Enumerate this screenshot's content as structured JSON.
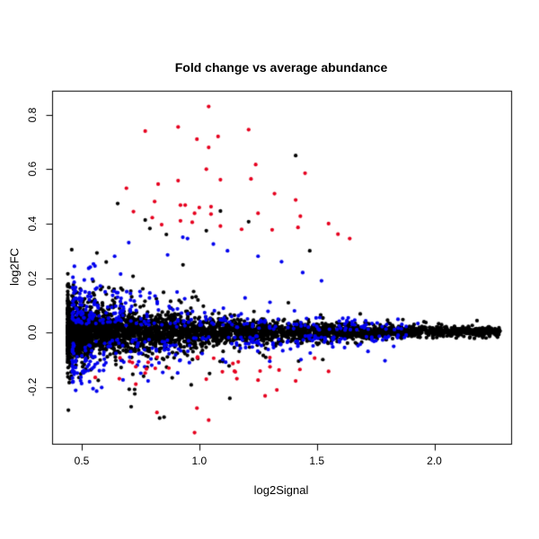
{
  "chart_data": {
    "type": "scatter",
    "title": "Fold change vs average abundance",
    "xlabel": "log2Signal",
    "ylabel": "log2FC",
    "xlim": [
      0.37,
      2.33
    ],
    "ylim": [
      -0.41,
      0.89
    ],
    "x_ticks": [
      0.5,
      1.0,
      1.5,
      2.0
    ],
    "x_tick_labels": [
      "0.5",
      "1.0",
      "1.5",
      "2.0"
    ],
    "y_ticks": [
      -0.2,
      0.0,
      0.2,
      0.4,
      0.6,
      0.8
    ],
    "y_tick_labels": [
      "-0.2",
      "0.0",
      "0.2",
      "0.4",
      "0.6",
      "0.8"
    ],
    "grid": false,
    "legend": null,
    "background": "#ffffff",
    "axis_color": "#000000",
    "point_radius_px": 2.1,
    "series_colors": {
      "black": "#000000",
      "blue": "#0000ee",
      "red": "#e6001e"
    },
    "description": "MA-plot style scatter: dense funnel-shaped black cloud centered on log2FC=0, widest near log2Signal 0.5-1.1, narrowing to a thin line at log2Signal 2.28. Blue points fringe the dense core (|log2FC| ~0.03-0.37). Red points are high-fold-change outliers (log2FC > 0.35 or < -0.08).",
    "generated_cloud": {
      "seed": 7,
      "black": {
        "count": 3800,
        "x_min": 0.44,
        "x_span": 1.84,
        "x_power": 2.0,
        "sd_base": 0.0045,
        "sd_amp": 0.046,
        "sd_decay": 1.5,
        "y_center": 0.004
      },
      "blue": {
        "count": 480,
        "x_min": 0.46,
        "x_span": 1.42,
        "x_power": 1.7,
        "ring_offset": 0.35,
        "ring_scale": 2.0,
        "y_clamp": 0.36
      },
      "red_fringe": {
        "count": 26,
        "x_min": 0.55,
        "x_span": 0.95,
        "x_power": 1.3,
        "y_base": -0.085,
        "y_extra": 0.095
      }
    },
    "explicit_points": {
      "red": [
        [
          1.04,
          0.83
        ],
        [
          0.77,
          0.74
        ],
        [
          0.91,
          0.755
        ],
        [
          1.21,
          0.745
        ],
        [
          0.99,
          0.71
        ],
        [
          1.08,
          0.72
        ],
        [
          1.04,
          0.68
        ],
        [
          1.24,
          0.617
        ],
        [
          1.03,
          0.6
        ],
        [
          1.45,
          0.585
        ],
        [
          0.69,
          0.53
        ],
        [
          0.825,
          0.545
        ],
        [
          0.91,
          0.558
        ],
        [
          1.09,
          0.561
        ],
        [
          1.22,
          0.564
        ],
        [
          1.32,
          0.51
        ],
        [
          1.41,
          0.487
        ],
        [
          0.81,
          0.481
        ],
        [
          0.72,
          0.444
        ],
        [
          0.92,
          0.468
        ],
        [
          0.94,
          0.468
        ],
        [
          1.0,
          0.459
        ],
        [
          1.05,
          0.462
        ],
        [
          0.98,
          0.438
        ],
        [
          1.05,
          0.435
        ],
        [
          1.25,
          0.438
        ],
        [
          0.8,
          0.422
        ],
        [
          0.84,
          0.396
        ],
        [
          0.92,
          0.41
        ],
        [
          0.97,
          0.405
        ],
        [
          1.09,
          0.391
        ],
        [
          1.18,
          0.379
        ],
        [
          1.31,
          0.377
        ],
        [
          1.43,
          0.427
        ],
        [
          1.55,
          0.4
        ],
        [
          1.59,
          0.361
        ],
        [
          1.42,
          0.386
        ],
        [
          1.64,
          0.345
        ],
        [
          0.98,
          -0.368
        ],
        [
          1.04,
          -0.322
        ],
        [
          0.82,
          -0.294
        ],
        [
          0.99,
          -0.278
        ],
        [
          1.28,
          -0.233
        ],
        [
          1.33,
          -0.211
        ],
        [
          1.25,
          -0.175
        ],
        [
          1.41,
          -0.178
        ],
        [
          1.16,
          -0.17
        ],
        [
          1.55,
          -0.143
        ],
        [
          0.73,
          -0.19
        ],
        [
          0.66,
          -0.17
        ]
      ],
      "blue": [
        [
          0.93,
          0.35
        ],
        [
          0.95,
          0.345
        ],
        [
          1.06,
          0.325
        ],
        [
          1.12,
          0.3
        ],
        [
          0.64,
          0.28
        ],
        [
          0.7,
          0.33
        ],
        [
          1.25,
          0.28
        ],
        [
          1.35,
          0.26
        ],
        [
          1.52,
          0.19
        ],
        [
          1.44,
          0.22
        ],
        [
          1.79,
          -0.104
        ],
        [
          1.88,
          0.022
        ],
        [
          1.93,
          0.033
        ]
      ],
      "black": [
        [
          1.41,
          0.65
        ],
        [
          1.09,
          0.446
        ],
        [
          0.77,
          0.413
        ],
        [
          1.21,
          0.407
        ],
        [
          0.79,
          0.382
        ],
        [
          1.03,
          0.374
        ],
        [
          1.13,
          -0.242
        ],
        [
          0.86,
          0.36
        ],
        [
          1.47,
          0.3
        ]
      ]
    }
  }
}
